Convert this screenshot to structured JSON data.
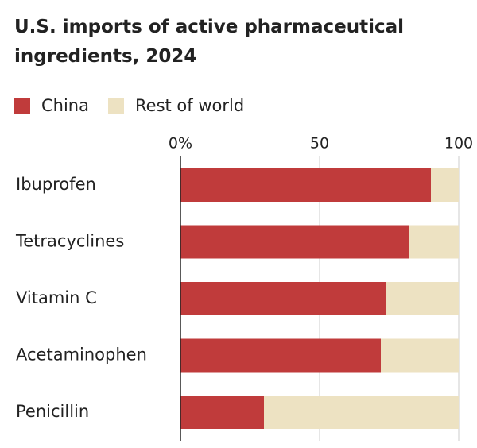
{
  "chart_data": {
    "type": "stacked-bar-horizontal",
    "title": "U.S. imports of active pharmaceutical ingredients, 2024",
    "categories": [
      "Ibuprofen",
      "Tetracyclines",
      "Vitamin C",
      "Acetaminophen",
      "Penicillin"
    ],
    "series": [
      {
        "name": "China",
        "color": "#c03b3b",
        "values": [
          90,
          82,
          74,
          72,
          30
        ]
      },
      {
        "name": "Rest of world",
        "color": "#ede2c2",
        "values": [
          10,
          18,
          26,
          28,
          70
        ]
      }
    ],
    "xlim": [
      0,
      100
    ],
    "xticks": [
      {
        "value": 0,
        "label": "0%"
      },
      50,
      100
    ],
    "grid": true
  }
}
